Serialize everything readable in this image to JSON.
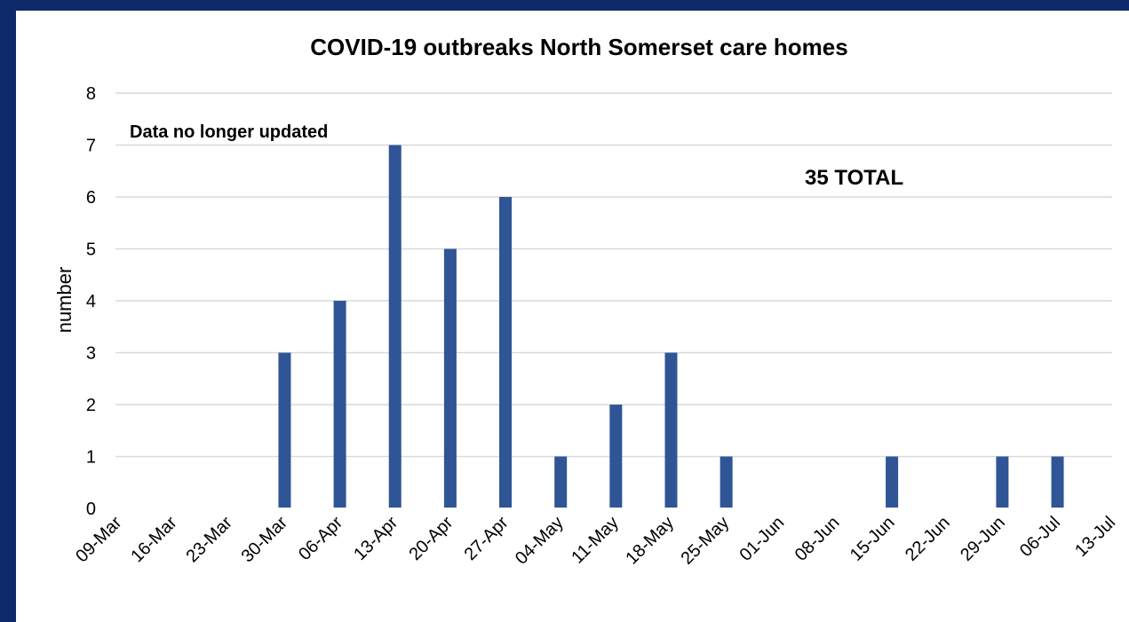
{
  "chart_data": {
    "type": "bar",
    "title": "COVID-19 outbreaks North Somerset care homes",
    "xlabel": "",
    "ylabel": "number",
    "ylim": [
      0,
      8
    ],
    "yticks": [
      "0",
      "1",
      "2",
      "3",
      "4",
      "5",
      "6",
      "7",
      "8"
    ],
    "categories": [
      "09-Mar",
      "16-Mar",
      "23-Mar",
      "30-Mar",
      "06-Apr",
      "13-Apr",
      "20-Apr",
      "27-Apr",
      "04-May",
      "11-May",
      "18-May",
      "25-May",
      "01-Jun",
      "08-Jun",
      "15-Jun",
      "22-Jun",
      "29-Jun",
      "06-Jul",
      "13-Jul"
    ],
    "values": [
      0,
      0,
      0,
      3,
      4,
      7,
      5,
      6,
      1,
      2,
      3,
      1,
      0,
      0,
      1,
      0,
      1,
      1,
      0
    ],
    "bar_color": "#2f5597",
    "grid": true,
    "annotations": [
      "Data no longer updated",
      "35 TOTAL"
    ]
  },
  "colors": {
    "frame": "#0f2a6b",
    "grid": "#d9d9d9"
  }
}
